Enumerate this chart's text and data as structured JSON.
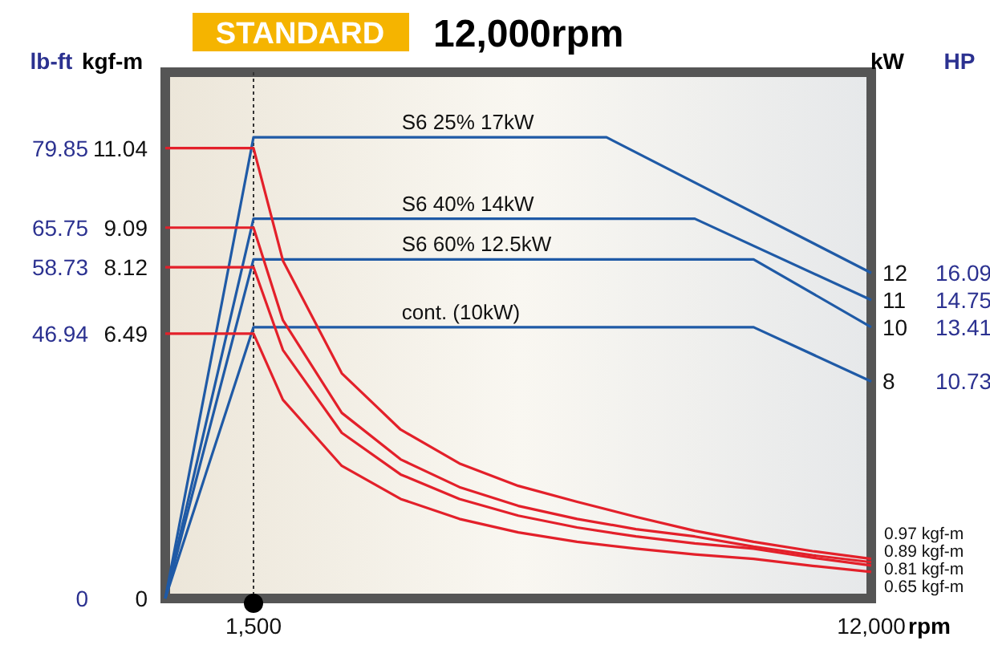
{
  "chart_data": {
    "type": "line",
    "title": "12,000rpm",
    "subtitle": "STANDARD",
    "xlabel": "rpm",
    "ylabel": "kgf-m",
    "y2label": "kW",
    "y3label": "lb-ft",
    "xlim": [
      0,
      12000
    ],
    "xticks": [
      {
        "value": 1500,
        "label": "1,500"
      },
      {
        "value": 12000,
        "label": "12,000"
      }
    ],
    "ylim": [
      0,
      12.9
    ],
    "yticks": [
      0,
      6.49,
      8.12,
      9.09,
      11.04
    ],
    "y2lim": [
      0,
      19.4
    ],
    "y2ticks": [
      8,
      10,
      11,
      12
    ],
    "y3lim": [
      0,
      93.3
    ],
    "y3ticks": [
      0,
      46.94,
      58.73,
      65.75,
      79.85
    ],
    "marker": "none",
    "line_style": "solid",
    "series": [
      {
        "name": "S6 25% 17kW",
        "axis": "y2",
        "color": "#1f5aa6",
        "x": [
          0,
          1500,
          7500,
          12000
        ],
        "values": [
          0,
          17,
          17,
          12
        ]
      },
      {
        "name": "S6 40% 14kW",
        "axis": "y2",
        "color": "#1f5aa6",
        "x": [
          0,
          1500,
          9000,
          12000
        ],
        "values": [
          0,
          14,
          14,
          11
        ]
      },
      {
        "name": "S6 60% 12.5kW",
        "axis": "y2",
        "color": "#1f5aa6",
        "x": [
          0,
          1500,
          10000,
          12000
        ],
        "values": [
          0,
          12.5,
          12.5,
          10
        ]
      },
      {
        "name": "cont. (10kW)",
        "axis": "y2",
        "color": "#1f5aa6",
        "x": [
          0,
          1500,
          10000,
          12000
        ],
        "values": [
          0,
          10,
          10,
          8
        ]
      },
      {
        "axis": "y",
        "color": "#e3202a",
        "x": [
          0,
          1500,
          2000,
          3000,
          4000,
          5000,
          6000,
          7000,
          8000,
          9000,
          10000,
          11000,
          12000
        ],
        "values": [
          11.04,
          11.04,
          8.28,
          5.52,
          4.14,
          3.31,
          2.76,
          2.37,
          2.0,
          1.66,
          1.39,
          1.16,
          0.97
        ]
      },
      {
        "axis": "y",
        "color": "#e3202a",
        "x": [
          0,
          1500,
          2000,
          3000,
          4000,
          5000,
          6000,
          7000,
          8000,
          9000,
          10000,
          11000,
          12000
        ],
        "values": [
          9.09,
          9.09,
          6.82,
          4.55,
          3.41,
          2.73,
          2.27,
          1.95,
          1.7,
          1.52,
          1.27,
          1.06,
          0.89
        ]
      },
      {
        "axis": "y",
        "color": "#e3202a",
        "x": [
          0,
          1500,
          2000,
          3000,
          4000,
          5000,
          6000,
          7000,
          8000,
          9000,
          10000,
          11000,
          12000
        ],
        "values": [
          8.12,
          8.12,
          6.09,
          4.06,
          3.04,
          2.44,
          2.03,
          1.74,
          1.52,
          1.35,
          1.22,
          1.0,
          0.81
        ]
      },
      {
        "axis": "y",
        "color": "#e3202a",
        "x": [
          0,
          1500,
          2000,
          3000,
          4000,
          5000,
          6000,
          7000,
          8000,
          9000,
          10000,
          11000,
          12000
        ],
        "values": [
          6.49,
          6.49,
          4.87,
          3.25,
          2.44,
          1.95,
          1.62,
          1.39,
          1.22,
          1.08,
          0.97,
          0.8,
          0.65
        ]
      }
    ],
    "ref_lines": [
      {
        "axis": "x",
        "value": 1500,
        "line_style": "dotted",
        "color": "#333333"
      }
    ],
    "annotations": [
      "0.97 kgf-m",
      "0.89 kgf-m",
      "0.81 kgf-m",
      "0.65 kgf-m",
      "10.73",
      "13.41",
      "14.75",
      "16.09",
      "HP"
    ]
  }
}
